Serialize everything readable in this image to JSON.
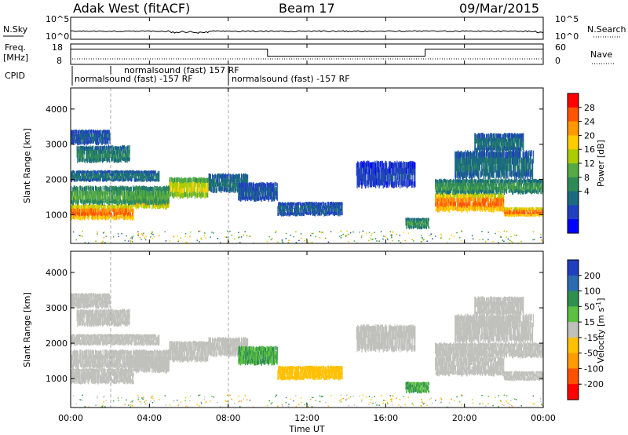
{
  "header": {
    "radar": "Adak West (fitACF)",
    "beam": "Beam 17",
    "date": "09/Mar/2015"
  },
  "panel_labels": {
    "nsky": "N.Sky",
    "freq_line1": "Freq.",
    "freq_line2": "[MHz]",
    "cpid": "CPID",
    "nsearch": "N.Search",
    "nave": "Nave",
    "x_axis": "Time UT",
    "slant_range": "Slant Range [km]",
    "power": "Power [dB]",
    "velocity_main": "Velocity [m s",
    "velocity_sup": "-1",
    "velocity_close": "]"
  },
  "nsky_axis": {
    "top": "10^5",
    "bottom": "10^0"
  },
  "freq_axis": {
    "top": "18",
    "bottom": "8"
  },
  "nave_axis": {
    "top": "60",
    "bottom": "0"
  },
  "cpid_labels": [
    {
      "text": "normalsound (fast) 157 RF",
      "start_hour": 2.0
    },
    {
      "text": "normalsound (fast) -157 RF",
      "start_hour": 0.0
    },
    {
      "text": "normalsound (fast) -157 RF",
      "start_hour": 8.0
    }
  ],
  "chart_data": {
    "type": "heatmap",
    "x_ticks": [
      "00:00",
      "04:00",
      "08:00",
      "12:00",
      "16:00",
      "20:00",
      "00:00"
    ],
    "x_range_hours": [
      0,
      24
    ],
    "y_range_km": [
      180,
      4600
    ],
    "y_ticks": [
      1000,
      2000,
      3000,
      4000
    ],
    "power_colorbar": {
      "ticks": [
        "28",
        "24",
        "20",
        "16",
        "12",
        "8",
        "4"
      ],
      "colors": [
        "#ff0000",
        "#ff5500",
        "#ff9900",
        "#ffcc00",
        "#aacc00",
        "#55aa44",
        "#2e8b57",
        "#1a6a80",
        "#2040c0",
        "#0000ff"
      ]
    },
    "velocity_colorbar": {
      "ticks": [
        "200",
        "100",
        "50",
        "15",
        "-15",
        "-50",
        "-100",
        "-200"
      ],
      "colors": [
        "#1f3fbf",
        "#2b6bb0",
        "#2f8f4f",
        "#5cc040",
        "#c0c0bc",
        "#ffc000",
        "#ff9a00",
        "#ff5000",
        "#ff0000"
      ]
    },
    "freq_step": [
      {
        "start_hour": 0,
        "end_hour": 10,
        "value_mhz": 15.5
      },
      {
        "start_hour": 10,
        "end_hour": 18,
        "value_mhz": 12.0
      },
      {
        "start_hour": 18,
        "end_hour": 24,
        "value_mhz": 15.5
      }
    ],
    "echo_bands": [
      {
        "t0": 0.0,
        "t1": 3.2,
        "r0": 870,
        "r1": 1280,
        "pow": 28,
        "vel": 0
      },
      {
        "t0": 3.2,
        "t1": 5.0,
        "r0": 1180,
        "r1": 1600,
        "pow": 24,
        "vel": 0
      },
      {
        "t0": 5.0,
        "t1": 7.0,
        "r0": 1500,
        "r1": 2050,
        "pow": 20,
        "vel": 0
      },
      {
        "t0": 7.0,
        "t1": 9.0,
        "r0": 1650,
        "r1": 2150,
        "pow": 8,
        "vel": 5
      },
      {
        "t0": 0.0,
        "t1": 5.0,
        "r0": 1300,
        "r1": 1800,
        "pow": 14,
        "vel": 0
      },
      {
        "t0": 8.5,
        "t1": 10.5,
        "r0": 1400,
        "r1": 1900,
        "pow": 6,
        "vel": 30
      },
      {
        "t0": 10.5,
        "t1": 13.8,
        "r0": 980,
        "r1": 1350,
        "pow": 6,
        "vel": -40
      },
      {
        "t0": 0.0,
        "t1": 4.5,
        "r0": 1950,
        "r1": 2250,
        "pow": 8,
        "vel": 0
      },
      {
        "t0": 0.3,
        "t1": 3.0,
        "r0": 2500,
        "r1": 2950,
        "pow": 10,
        "vel": 0
      },
      {
        "t0": 0.0,
        "t1": 2.0,
        "r0": 3000,
        "r1": 3400,
        "pow": 6,
        "vel": 0
      },
      {
        "t0": 14.5,
        "t1": 17.5,
        "r0": 1800,
        "r1": 2500,
        "pow": 4,
        "vel": 0
      },
      {
        "t0": 17.0,
        "t1": 18.2,
        "r0": 600,
        "r1": 900,
        "pow": 12,
        "vel": 30
      },
      {
        "t0": 18.5,
        "t1": 22.0,
        "r0": 1100,
        "r1": 1600,
        "pow": 28,
        "vel": 0
      },
      {
        "t0": 22.0,
        "t1": 24.0,
        "r0": 950,
        "r1": 1200,
        "pow": 28,
        "vel": 0
      },
      {
        "t0": 18.5,
        "t1": 24.0,
        "r0": 1600,
        "r1": 2000,
        "pow": 12,
        "vel": 0
      },
      {
        "t0": 19.5,
        "t1": 23.5,
        "r0": 2050,
        "r1": 2800,
        "pow": 8,
        "vel": 0
      },
      {
        "t0": 20.5,
        "t1": 23.0,
        "r0": 2800,
        "r1": 3300,
        "pow": 8,
        "vel": 0
      }
    ]
  }
}
